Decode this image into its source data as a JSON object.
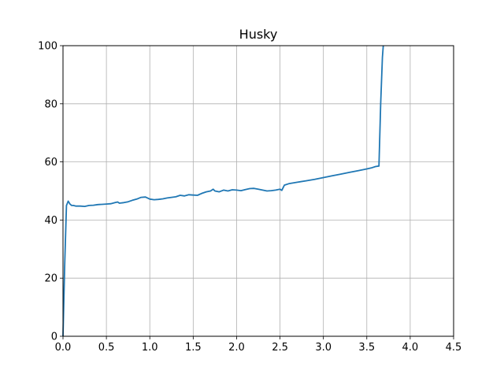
{
  "chart_data": {
    "type": "line",
    "title": "Husky",
    "xlabel": "",
    "ylabel": "",
    "xlim": [
      0,
      4.5
    ],
    "ylim": [
      0,
      100
    ],
    "xticks": [
      "0.0",
      "0.5",
      "1.0",
      "1.5",
      "2.0",
      "2.5",
      "3.0",
      "3.5",
      "4.0",
      "4.5"
    ],
    "yticks": [
      "0",
      "20",
      "40",
      "60",
      "80",
      "100"
    ],
    "grid": true,
    "colors": {
      "line": "#1f77b4",
      "grid": "#b0b0b0",
      "axis": "#000000"
    },
    "series": [
      {
        "x": [
          0.0,
          0.02,
          0.04,
          0.06,
          0.08,
          0.1,
          0.12,
          0.15,
          0.2,
          0.25,
          0.3,
          0.35,
          0.4,
          0.45,
          0.5,
          0.55,
          0.6,
          0.63,
          0.65,
          0.7,
          0.75,
          0.8,
          0.85,
          0.9,
          0.95,
          1.0,
          1.05,
          1.1,
          1.15,
          1.2,
          1.25,
          1.3,
          1.35,
          1.4,
          1.45,
          1.5,
          1.55,
          1.6,
          1.65,
          1.7,
          1.73,
          1.75,
          1.8,
          1.85,
          1.9,
          1.95,
          2.0,
          2.05,
          2.1,
          2.15,
          2.2,
          2.25,
          2.3,
          2.35,
          2.4,
          2.45,
          2.5,
          2.52,
          2.55,
          2.6,
          2.7,
          2.8,
          2.9,
          3.0,
          3.1,
          3.2,
          3.3,
          3.4,
          3.5,
          3.55,
          3.6,
          3.64,
          3.66,
          3.68,
          3.69
        ],
        "y": [
          0,
          25,
          45,
          46.5,
          45.5,
          45,
          45,
          44.8,
          44.8,
          44.7,
          45,
          45.1,
          45.3,
          45.4,
          45.5,
          45.6,
          46,
          46.2,
          45.8,
          46,
          46.3,
          46.8,
          47.2,
          47.8,
          47.9,
          47.2,
          47.0,
          47.1,
          47.3,
          47.6,
          47.8,
          48.0,
          48.5,
          48.3,
          48.7,
          48.6,
          48.5,
          49.2,
          49.7,
          50.0,
          50.6,
          50.0,
          49.7,
          50.3,
          50.0,
          50.4,
          50.3,
          50.1,
          50.5,
          50.8,
          50.9,
          50.6,
          50.3,
          50.0,
          50.1,
          50.3,
          50.6,
          50.2,
          52.0,
          52.5,
          53.0,
          53.5,
          54.0,
          54.6,
          55.2,
          55.8,
          56.4,
          57.0,
          57.6,
          57.9,
          58.4,
          58.6,
          80,
          96,
          100
        ]
      }
    ]
  }
}
